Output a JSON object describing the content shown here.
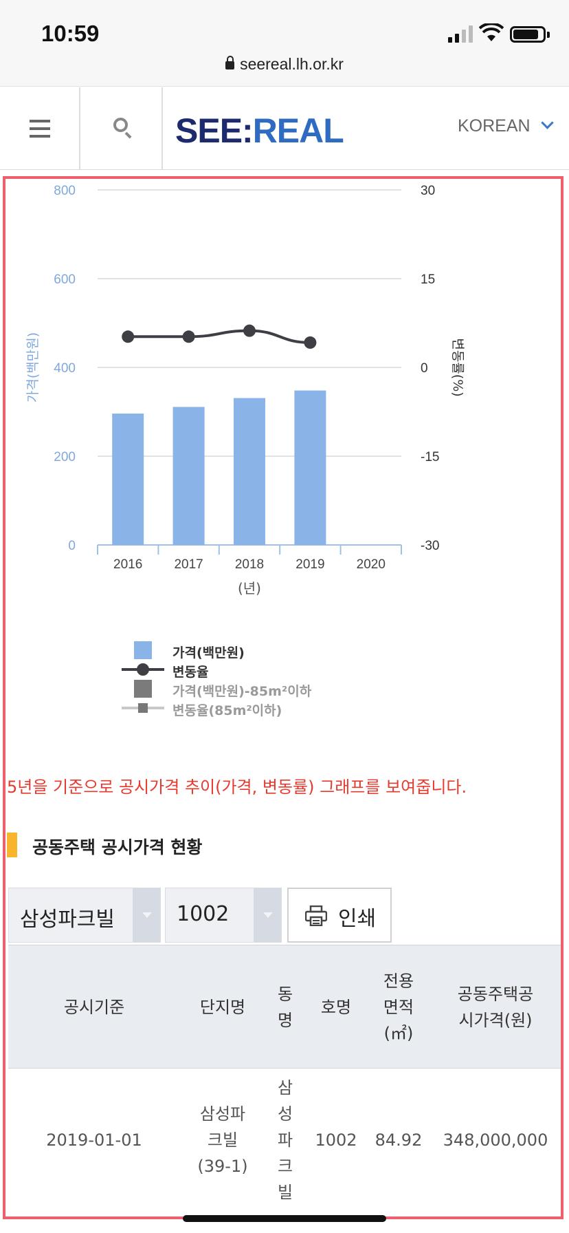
{
  "status": {
    "time": "10:59",
    "url": "seereal.lh.or.kr"
  },
  "header": {
    "logo_left": "SEE:",
    "logo_right": "REAL",
    "language": "KOREAN"
  },
  "chart_data": {
    "type": "bar",
    "categories": [
      "2016",
      "2017",
      "2018",
      "2019",
      "2020"
    ],
    "xlabel": "(년)",
    "ylabel": "가격(백만원)",
    "y2label": "변동률(%)",
    "ylim": [
      0,
      800
    ],
    "y2lim": [
      -30,
      30
    ],
    "yticks": [
      "800",
      "600",
      "400",
      "200",
      "0"
    ],
    "y2ticks": [
      "30",
      "15",
      "0",
      "-15",
      "-30"
    ],
    "grid": true,
    "series": [
      {
        "name": "가격(백만원)",
        "type": "bar",
        "axis": "left",
        "values": [
          296,
          311,
          331,
          348,
          null
        ]
      },
      {
        "name": "변동율",
        "type": "line",
        "axis": "right",
        "values": [
          5.2,
          5.2,
          6.2,
          4.2,
          null
        ]
      }
    ],
    "legend": [
      "가격(백만원)",
      "변동율",
      "가격(백만원)-85m²이하",
      "변동율(85m²이하)"
    ],
    "legend_position": "bottom-left"
  },
  "notice": "5년을 기준으로 공시가격 추이(가격, 변동률) 그래프를 보여줍니다.",
  "section_title": "공동주택 공시가격 현황",
  "controls": {
    "complex_select": "삼성파크빌",
    "unit_select": "1002",
    "print_label": "인쇄"
  },
  "table": {
    "headers": [
      "공시기준",
      "단지명",
      "동\n명",
      "호명",
      "전용\n면적\n(㎡)",
      "공동주택공\n시가격(원)"
    ],
    "rows": [
      [
        "2019-01-01",
        "삼성파\n크빌\n(39-1)",
        "삼\n성\n파\n크\n빌",
        "1002",
        "84.92",
        "348,000,000"
      ]
    ]
  },
  "colors": {
    "bar": "#8ab4e8",
    "line": "#3d3f45",
    "accent_red": "#e63a2f",
    "frame": "#ed5f6d",
    "section_bar": "#f8b42c"
  }
}
